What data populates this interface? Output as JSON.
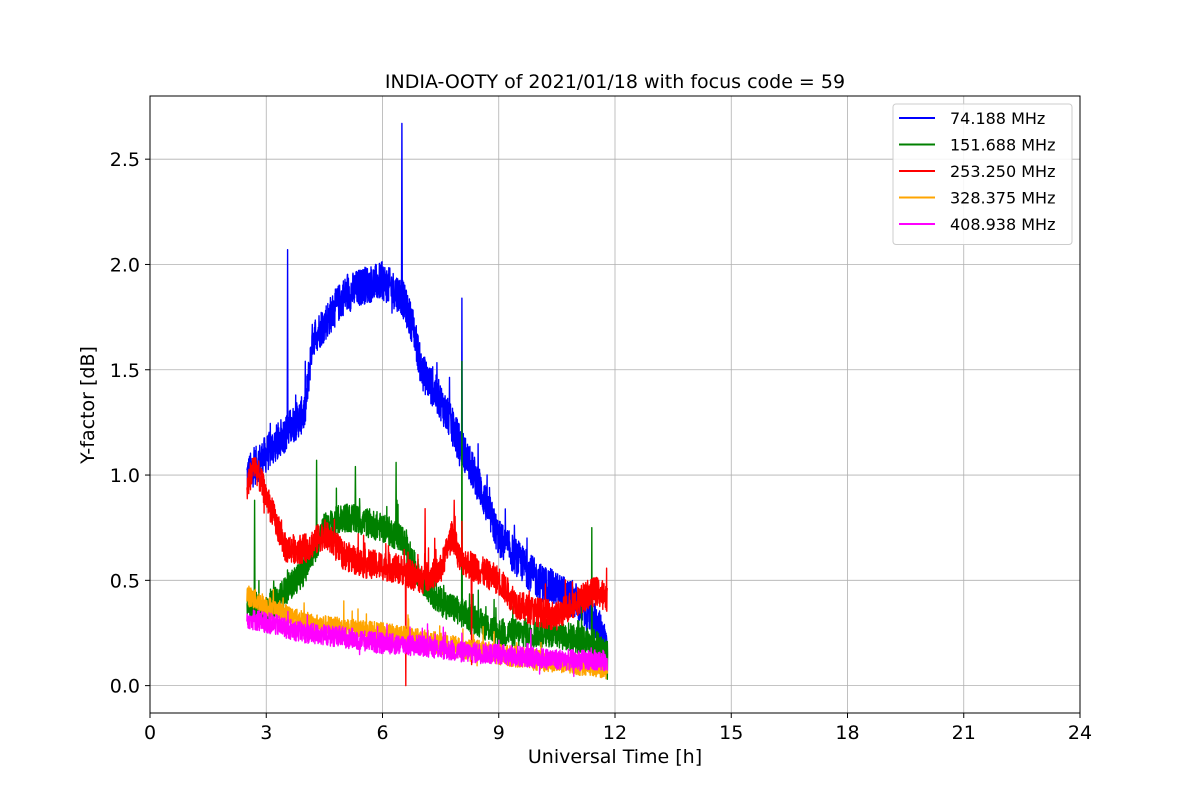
{
  "chart_data": {
    "type": "line",
    "title": "INDIA-OOTY of 2021/01/18 with focus code = 59",
    "xlabel": "Universal Time [h]",
    "ylabel": "Y-factor [dB]",
    "xlim": [
      0,
      24
    ],
    "ylim": [
      -0.13,
      2.8
    ],
    "xticks": [
      0,
      3,
      6,
      9,
      12,
      15,
      18,
      21,
      24
    ],
    "xtick_labels": [
      "0",
      "3",
      "6",
      "9",
      "12",
      "15",
      "18",
      "21",
      "24"
    ],
    "yticks": [
      0.0,
      0.5,
      1.0,
      1.5,
      2.0,
      2.5
    ],
    "ytick_labels": [
      "0.0",
      "0.5",
      "1.0",
      "1.5",
      "2.0",
      "2.5"
    ],
    "grid": true,
    "legend_position": "top-right",
    "series": [
      {
        "name": " 74.188 MHz",
        "color": "#0000ff",
        "noise": 0.09,
        "x": [
          2.5,
          3.0,
          3.5,
          4.0,
          4.2,
          4.5,
          5.0,
          5.5,
          6.0,
          6.5,
          6.8,
          7.0,
          7.5,
          8.0,
          8.5,
          9.0,
          9.5,
          10.0,
          10.5,
          11.0,
          11.5,
          11.8
        ],
        "y": [
          1.0,
          1.1,
          1.2,
          1.3,
          1.65,
          1.72,
          1.85,
          1.9,
          1.92,
          1.85,
          1.7,
          1.5,
          1.35,
          1.15,
          0.95,
          0.7,
          0.6,
          0.5,
          0.45,
          0.4,
          0.3,
          0.2
        ],
        "spikes": [
          [
            3.55,
            2.07
          ],
          [
            4.05,
            1.35
          ],
          [
            6.5,
            2.67
          ],
          [
            8.05,
            1.84
          ],
          [
            8.6,
            0.85
          ]
        ]
      },
      {
        "name": "151.688 MHz",
        "color": "#008000",
        "noise": 0.07,
        "x": [
          2.5,
          3.0,
          3.5,
          4.0,
          4.5,
          5.0,
          5.5,
          6.0,
          6.5,
          7.0,
          7.5,
          8.0,
          8.5,
          9.0,
          9.5,
          10.0,
          10.5,
          11.0,
          11.5,
          11.8
        ],
        "y": [
          0.4,
          0.35,
          0.45,
          0.55,
          0.75,
          0.8,
          0.78,
          0.75,
          0.7,
          0.5,
          0.4,
          0.35,
          0.3,
          0.25,
          0.25,
          0.25,
          0.25,
          0.22,
          0.2,
          0.15
        ],
        "spikes": [
          [
            2.7,
            0.88
          ],
          [
            4.3,
            1.07
          ],
          [
            5.3,
            1.04
          ],
          [
            6.35,
            1.06
          ],
          [
            8.05,
            1.54
          ],
          [
            11.4,
            0.75
          ],
          [
            11.8,
            0.03
          ]
        ]
      },
      {
        "name": "253.250 MHz",
        "color": "#ff0000",
        "noise": 0.07,
        "x": [
          2.5,
          2.7,
          3.0,
          3.5,
          4.0,
          4.5,
          5.0,
          5.5,
          6.0,
          6.5,
          7.0,
          7.5,
          7.8,
          8.0,
          8.5,
          9.0,
          9.5,
          10.0,
          10.5,
          11.0,
          11.5,
          11.8
        ],
        "y": [
          0.95,
          1.05,
          0.9,
          0.65,
          0.65,
          0.72,
          0.62,
          0.58,
          0.57,
          0.55,
          0.5,
          0.55,
          0.72,
          0.6,
          0.55,
          0.5,
          0.38,
          0.35,
          0.33,
          0.4,
          0.45,
          0.42
        ],
        "spikes": [
          [
            6.6,
            0.0
          ],
          [
            7.1,
            0.84
          ],
          [
            7.85,
            0.88
          ],
          [
            8.05,
            0.78
          ],
          [
            8.3,
            0.1
          ]
        ]
      },
      {
        "name": "328.375 MHz",
        "color": "#ffa500",
        "noise": 0.05,
        "x": [
          2.5,
          3.0,
          4.0,
          5.0,
          6.0,
          7.0,
          8.0,
          9.0,
          10.0,
          11.0,
          11.8
        ],
        "y": [
          0.43,
          0.38,
          0.3,
          0.27,
          0.25,
          0.22,
          0.18,
          0.15,
          0.12,
          0.1,
          0.08
        ],
        "spikes": []
      },
      {
        "name": "408.938 MHz",
        "color": "#ff00ff",
        "noise": 0.05,
        "x": [
          2.5,
          3.0,
          4.0,
          5.0,
          6.0,
          7.0,
          8.0,
          9.0,
          10.0,
          11.0,
          11.8
        ],
        "y": [
          0.32,
          0.3,
          0.25,
          0.23,
          0.2,
          0.19,
          0.16,
          0.15,
          0.13,
          0.12,
          0.12
        ],
        "spikes": []
      }
    ]
  }
}
